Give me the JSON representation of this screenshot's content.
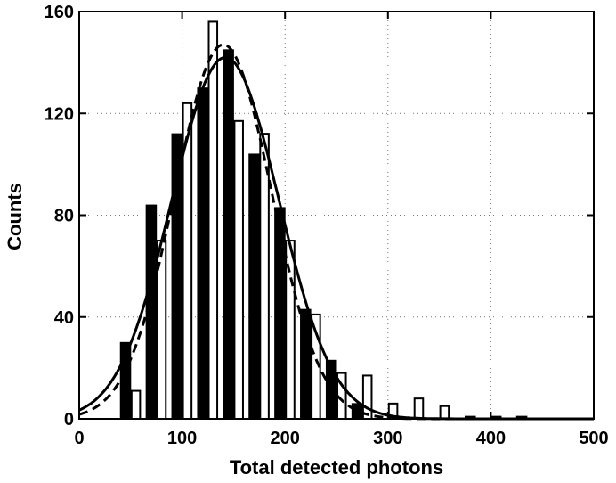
{
  "chart_data": {
    "type": "bar",
    "title": "",
    "xlabel": "Total detected photons",
    "ylabel": "Counts",
    "xlim": [
      0,
      500
    ],
    "ylim": [
      0,
      160
    ],
    "x_ticks": [
      0,
      100,
      200,
      300,
      400,
      500
    ],
    "y_ticks": [
      0,
      40,
      80,
      120,
      160
    ],
    "grid": "dotted",
    "bin_width": 25,
    "series": [
      {
        "style": "filled",
        "bars": [
          {
            "x": 45,
            "y": 30
          },
          {
            "x": 70,
            "y": 84
          },
          {
            "x": 95,
            "y": 112
          },
          {
            "x": 120,
            "y": 130
          },
          {
            "x": 145,
            "y": 145
          },
          {
            "x": 170,
            "y": 104
          },
          {
            "x": 195,
            "y": 83
          },
          {
            "x": 220,
            "y": 43
          },
          {
            "x": 245,
            "y": 23
          },
          {
            "x": 270,
            "y": 6
          },
          {
            "x": 380,
            "y": 1
          },
          {
            "x": 405,
            "y": 1
          },
          {
            "x": 430,
            "y": 1
          }
        ]
      },
      {
        "style": "hollow",
        "bars": [
          {
            "x": 55,
            "y": 11
          },
          {
            "x": 80,
            "y": 70
          },
          {
            "x": 105,
            "y": 124
          },
          {
            "x": 130,
            "y": 156
          },
          {
            "x": 155,
            "y": 117
          },
          {
            "x": 180,
            "y": 112
          },
          {
            "x": 205,
            "y": 70
          },
          {
            "x": 230,
            "y": 41
          },
          {
            "x": 255,
            "y": 18
          },
          {
            "x": 280,
            "y": 17
          },
          {
            "x": 305,
            "y": 6
          },
          {
            "x": 330,
            "y": 8
          },
          {
            "x": 355,
            "y": 5
          }
        ]
      }
    ],
    "fits": [
      {
        "style": "solid",
        "mu": 142,
        "sigma": 52,
        "amplitude": 142
      },
      {
        "style": "dashed",
        "mu": 140,
        "sigma": 47,
        "amplitude": 147
      }
    ]
  }
}
